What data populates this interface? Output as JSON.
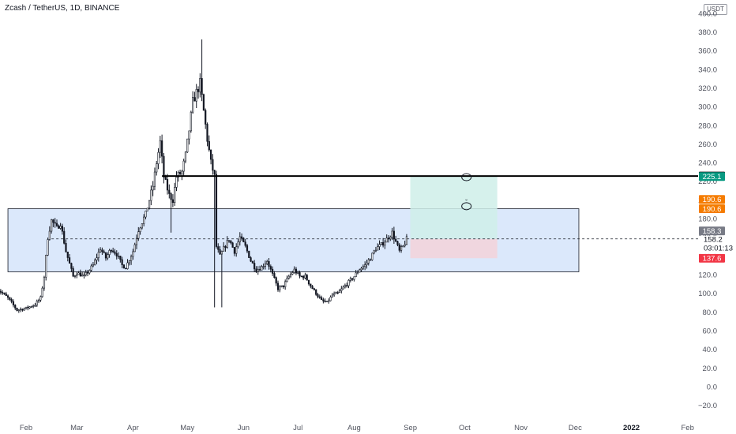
{
  "header": {
    "title": "Zcash / TetherUS, 1D, BINANCE",
    "currency": "USDT"
  },
  "colors": {
    "candle": "#131722",
    "range_fill": "#dbe8fb",
    "target_fill": "#cfeee9",
    "stop_fill": "#f2d4dc",
    "line_black": "#000000",
    "label_black": "#000000",
    "label_teal": "#089981",
    "label_orange": "#f57c00",
    "label_grey": "#787b86",
    "label_red": "#f23645"
  },
  "chart_data": {
    "type": "candlestick",
    "title": "Zcash / TetherUS, 1D, BINANCE",
    "yaxis": {
      "ylim": [
        -30,
        400
      ],
      "ticks": [
        -20,
        0,
        20,
        40,
        60,
        80,
        100,
        120,
        140,
        160,
        180,
        200,
        220,
        240,
        260,
        280,
        300,
        320,
        340,
        360,
        380,
        400
      ],
      "tick_labels": [
        "−20.0",
        "0.0",
        "20.0",
        "40.0",
        "60.0",
        "80.0",
        "100.0",
        "120.0",
        "140.0",
        "160.0",
        "180.0",
        "200.0",
        "220.0",
        "240.0",
        "260.0",
        "280.0",
        "300.0",
        "320.0",
        "340.0",
        "360.0",
        "380.0",
        "400.0"
      ]
    },
    "xaxis": {
      "tick_labels": [
        "Feb",
        "Mar",
        "Apr",
        "May",
        "Jun",
        "Jul",
        "Aug",
        "Sep",
        "Oct",
        "Nov",
        "Dec",
        "2022",
        "Feb"
      ],
      "bold": [
        false,
        false,
        false,
        false,
        false,
        false,
        false,
        false,
        false,
        false,
        false,
        true,
        false
      ],
      "day_offsets": [
        0,
        28,
        59,
        89,
        120,
        150,
        181,
        212,
        242,
        273,
        303,
        334,
        365
      ]
    },
    "price_keypoints": [
      {
        "day": -16,
        "price": 105
      },
      {
        "day": -10,
        "price": 95
      },
      {
        "day": -5,
        "price": 82
      },
      {
        "day": 0,
        "price": 84
      },
      {
        "day": 5,
        "price": 88
      },
      {
        "day": 8,
        "price": 95
      },
      {
        "day": 10,
        "price": 118
      },
      {
        "day": 12,
        "price": 160
      },
      {
        "day": 14,
        "price": 178
      },
      {
        "day": 17,
        "price": 170
      },
      {
        "day": 19,
        "price": 175
      },
      {
        "day": 22,
        "price": 145
      },
      {
        "day": 26,
        "price": 118
      },
      {
        "day": 28,
        "price": 122
      },
      {
        "day": 32,
        "price": 118
      },
      {
        "day": 37,
        "price": 130
      },
      {
        "day": 41,
        "price": 148
      },
      {
        "day": 44,
        "price": 138
      },
      {
        "day": 47,
        "price": 148
      },
      {
        "day": 50,
        "price": 142
      },
      {
        "day": 53,
        "price": 130
      },
      {
        "day": 55,
        "price": 128
      },
      {
        "day": 59,
        "price": 145
      },
      {
        "day": 62,
        "price": 168
      },
      {
        "day": 66,
        "price": 185
      },
      {
        "day": 70,
        "price": 215
      },
      {
        "day": 72,
        "price": 240
      },
      {
        "day": 74,
        "price": 262
      },
      {
        "day": 76,
        "price": 225
      },
      {
        "day": 79,
        "price": 205
      },
      {
        "day": 81,
        "price": 200
      },
      {
        "day": 83,
        "price": 225
      },
      {
        "day": 86,
        "price": 230
      },
      {
        "day": 88,
        "price": 248
      },
      {
        "day": 90,
        "price": 275
      },
      {
        "day": 92,
        "price": 305
      },
      {
        "day": 94,
        "price": 315
      },
      {
        "day": 96,
        "price": 325
      },
      {
        "day": 98,
        "price": 295
      },
      {
        "day": 100,
        "price": 265
      },
      {
        "day": 102,
        "price": 240
      },
      {
        "day": 104,
        "price": 225
      },
      {
        "day": 105,
        "price": 150
      },
      {
        "day": 107,
        "price": 140
      },
      {
        "day": 109,
        "price": 148
      },
      {
        "day": 112,
        "price": 158
      },
      {
        "day": 115,
        "price": 145
      },
      {
        "day": 118,
        "price": 160
      },
      {
        "day": 121,
        "price": 150
      },
      {
        "day": 124,
        "price": 135
      },
      {
        "day": 127,
        "price": 125
      },
      {
        "day": 130,
        "price": 128
      },
      {
        "day": 133,
        "price": 135
      },
      {
        "day": 136,
        "price": 120
      },
      {
        "day": 139,
        "price": 105
      },
      {
        "day": 142,
        "price": 108
      },
      {
        "day": 145,
        "price": 118
      },
      {
        "day": 148,
        "price": 125
      },
      {
        "day": 151,
        "price": 118
      },
      {
        "day": 154,
        "price": 118
      },
      {
        "day": 157,
        "price": 108
      },
      {
        "day": 160,
        "price": 100
      },
      {
        "day": 163,
        "price": 92
      },
      {
        "day": 166,
        "price": 90
      },
      {
        "day": 169,
        "price": 98
      },
      {
        "day": 172,
        "price": 100
      },
      {
        "day": 175,
        "price": 106
      },
      {
        "day": 178,
        "price": 112
      },
      {
        "day": 181,
        "price": 118
      },
      {
        "day": 184,
        "price": 126
      },
      {
        "day": 187,
        "price": 130
      },
      {
        "day": 190,
        "price": 138
      },
      {
        "day": 193,
        "price": 148
      },
      {
        "day": 196,
        "price": 152
      },
      {
        "day": 199,
        "price": 158
      },
      {
        "day": 202,
        "price": 165
      },
      {
        "day": 204,
        "price": 155
      },
      {
        "day": 206,
        "price": 145
      },
      {
        "day": 208,
        "price": 150
      },
      {
        "day": 210,
        "price": 158
      }
    ],
    "levels": {
      "resistance_line": 225.6,
      "range_top": 190.6,
      "range_bottom": 123.0,
      "entry": 158.3,
      "last_price": 158.2
    },
    "range_box": {
      "start_day": -10,
      "end_day": 305,
      "top": 190.6,
      "bottom": 123.0
    },
    "resistance_line": {
      "start_day": 75,
      "end_day": 305,
      "price": 225.6
    },
    "dashed_line": {
      "start_day": 14,
      "end_day": 305,
      "price": 158.3
    },
    "position": {
      "start_day": 212,
      "end_day": 260,
      "entry": 158.3,
      "target": 225.1,
      "stop": 137.6
    },
    "annotations": [
      {
        "type": "ellipse",
        "day": 243,
        "price": 224.4
      },
      {
        "type": "ellipse",
        "day": 243,
        "price": 193.3,
        "mark": "ˇ"
      }
    ],
    "price_labels": [
      {
        "text": "225.6",
        "price": 225.6,
        "color": "label_black"
      },
      {
        "text": "225.1",
        "price": 225.1,
        "color": "label_teal"
      },
      {
        "text": "190.6",
        "price": 200.5,
        "color": "label_orange"
      },
      {
        "text": "190.6",
        "price": 190.6,
        "color": "label_orange"
      },
      {
        "text": "158.3",
        "price": 166.8,
        "color": "label_grey"
      },
      {
        "text": "137.6",
        "price": 137.6,
        "color": "label_red"
      }
    ],
    "last_price_label": {
      "price_text": "158.2",
      "countdown": "03:01:13",
      "price": 158.2
    }
  }
}
